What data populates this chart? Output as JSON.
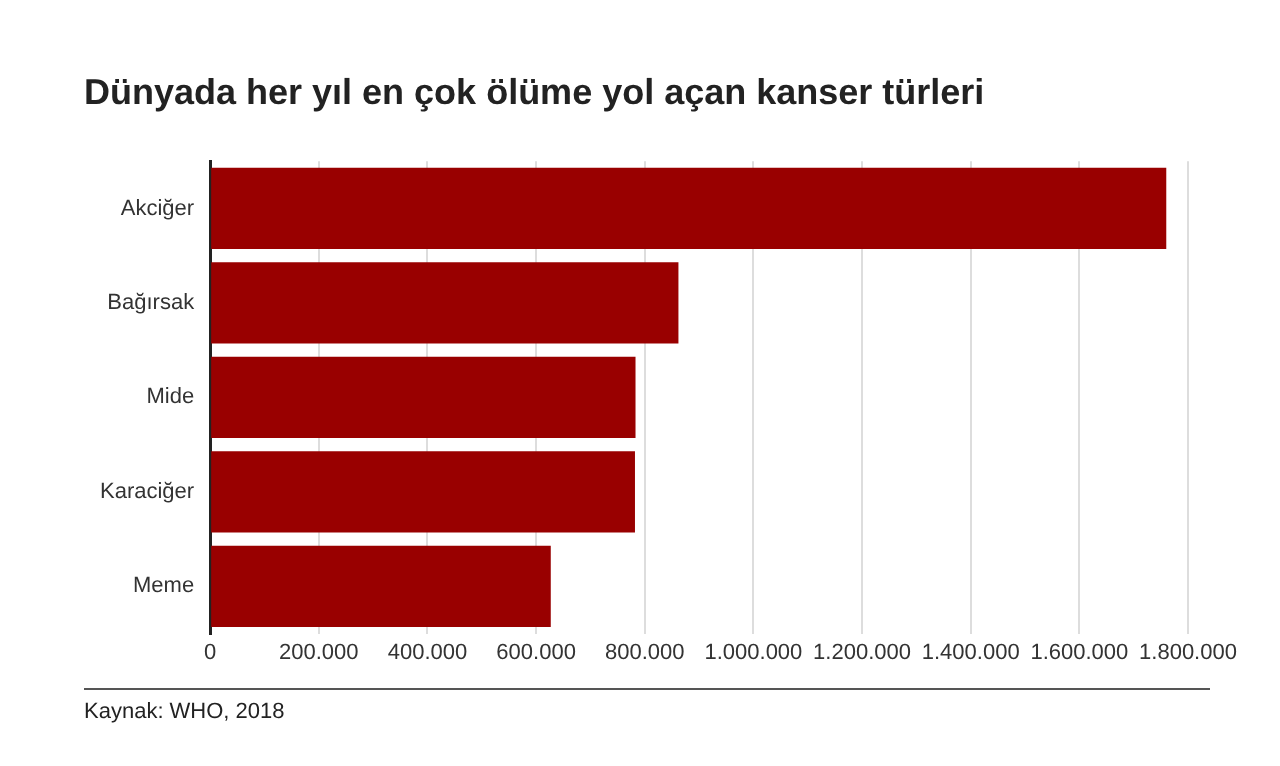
{
  "chart_data": {
    "type": "bar",
    "orientation": "horizontal",
    "title": "Dünyada her yıl en çok ölüme yol açan kanser türleri",
    "categories": [
      "Akciğer",
      "Bağırsak",
      "Mide",
      "Karaciğer",
      "Meme"
    ],
    "values": [
      1760000,
      862000,
      783000,
      782000,
      627000
    ],
    "color": "#990000",
    "xlim": [
      0,
      1800000
    ],
    "xticks": [
      {
        "value": 0,
        "label": "0"
      },
      {
        "value": 200000,
        "label": "200.000"
      },
      {
        "value": 400000,
        "label": "400.000"
      },
      {
        "value": 600000,
        "label": "600.000"
      },
      {
        "value": 800000,
        "label": "800.000"
      },
      {
        "value": 1000000,
        "label": "1.000.000"
      },
      {
        "value": 1200000,
        "label": "1.200.000"
      },
      {
        "value": 1400000,
        "label": "1.400.000"
      },
      {
        "value": 1600000,
        "label": "1.600.000"
      },
      {
        "value": 1800000,
        "label": "1.800.000"
      }
    ],
    "grid": "x",
    "legend": false,
    "annotations": [
      "Kaynak: WHO, 2018"
    ]
  }
}
